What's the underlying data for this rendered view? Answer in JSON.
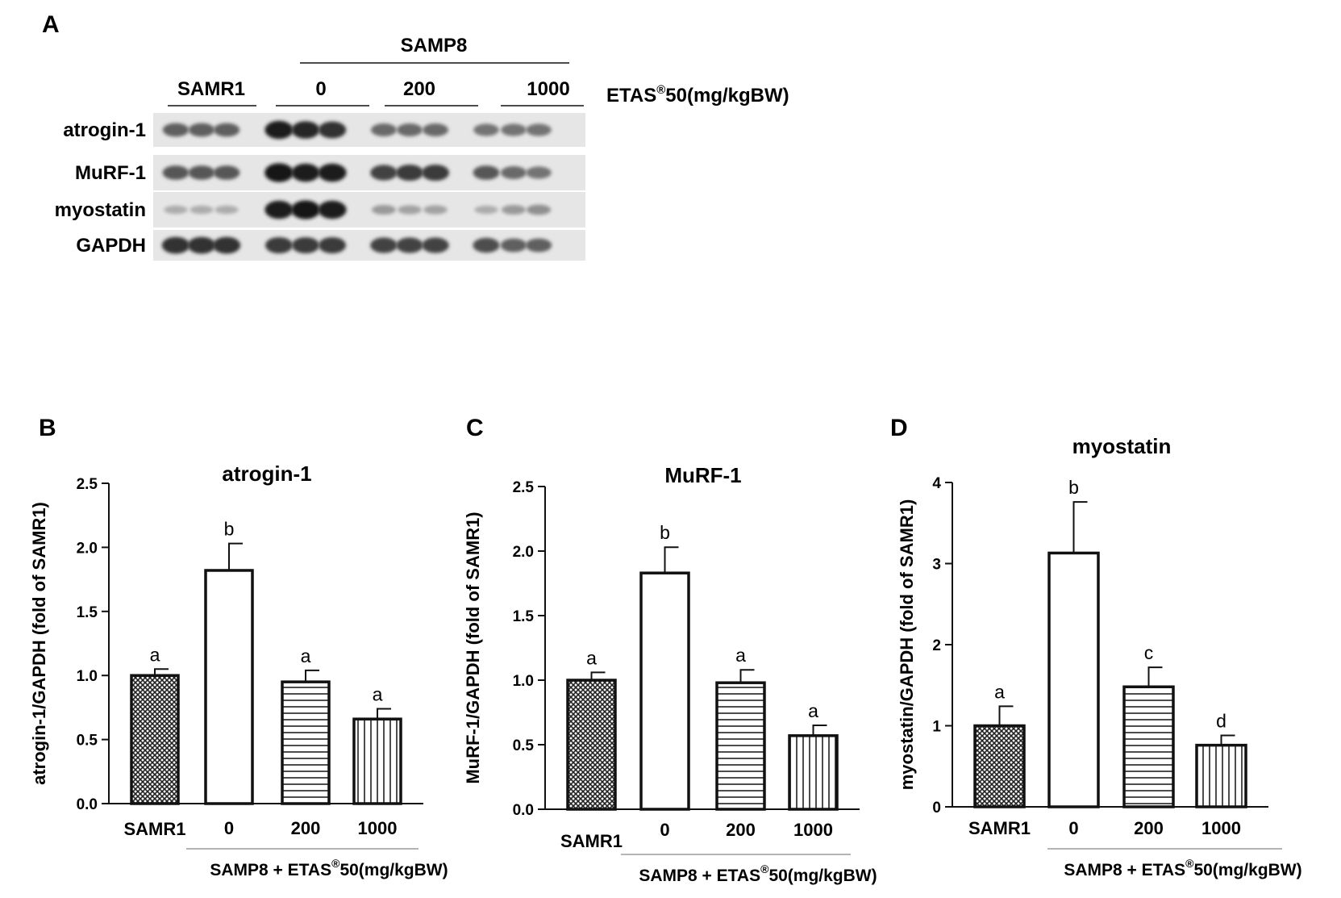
{
  "blot": {
    "panel": "A",
    "strain_header": "SAMP8",
    "control_label": "SAMR1",
    "doses": [
      "0",
      "200",
      "1000"
    ],
    "treatment_label_main": "ETAS",
    "treatment_label_reg": "®",
    "treatment_label_tail": "50(mg/kgBW)",
    "rows": [
      {
        "label": "atrogin-1",
        "intensity": [
          0.55,
          0.55,
          0.55,
          0.9,
          0.85,
          0.8,
          0.5,
          0.5,
          0.5,
          0.45,
          0.45,
          0.45
        ]
      },
      {
        "label": "MuRF-1",
        "intensity": [
          0.6,
          0.6,
          0.6,
          0.95,
          0.9,
          0.9,
          0.7,
          0.75,
          0.75,
          0.6,
          0.5,
          0.45
        ]
      },
      {
        "label": "myostatin",
        "intensity": [
          0.15,
          0.15,
          0.15,
          0.9,
          0.95,
          0.9,
          0.25,
          0.2,
          0.2,
          0.15,
          0.25,
          0.3
        ]
      },
      {
        "label": "GAPDH",
        "intensity": [
          0.8,
          0.8,
          0.8,
          0.75,
          0.75,
          0.75,
          0.7,
          0.7,
          0.7,
          0.65,
          0.55,
          0.55
        ]
      }
    ]
  },
  "chart_data": [
    {
      "panel": "B",
      "type": "bar",
      "title": "atrogin-1",
      "ylabel": "atrogin-1/GAPDH (fold of SAMR1)",
      "categories": [
        "SAMR1",
        "0",
        "200",
        "1000"
      ],
      "values": [
        1.0,
        1.82,
        0.95,
        0.66
      ],
      "errors": [
        0.05,
        0.21,
        0.09,
        0.08
      ],
      "significance": [
        "a",
        "b",
        "a",
        "a"
      ],
      "fills": [
        "crosshatch",
        "white",
        "horizontal",
        "vertical"
      ],
      "ylim": [
        0,
        2.5
      ],
      "yticks": [
        "0.0",
        "0.5",
        "1.0",
        "1.5",
        "2.0",
        "2.5"
      ],
      "group_label_main": "SAMP8 + ETAS",
      "group_label_reg": "®",
      "group_label_tail": "50(mg/kgBW)"
    },
    {
      "panel": "C",
      "type": "bar",
      "title": "MuRF-1",
      "ylabel": "MuRF-1/GAPDH (fold of SAMR1)",
      "categories": [
        "SAMR1",
        "0",
        "200",
        "1000"
      ],
      "values": [
        1.0,
        1.83,
        0.98,
        0.57
      ],
      "errors": [
        0.06,
        0.2,
        0.1,
        0.08
      ],
      "significance": [
        "a",
        "b",
        "a",
        "a"
      ],
      "fills": [
        "crosshatch",
        "white",
        "horizontal",
        "vertical"
      ],
      "ylim": [
        0,
        2.5
      ],
      "yticks": [
        "0.0",
        "0.5",
        "1.0",
        "1.5",
        "2.0",
        "2.5"
      ],
      "group_label_main": "SAMP8 + ETAS",
      "group_label_reg": "®",
      "group_label_tail": "50(mg/kgBW)"
    },
    {
      "panel": "D",
      "type": "bar",
      "title": "myostatin",
      "ylabel": "myostatin/GAPDH (fold of SAMR1)",
      "categories": [
        "SAMR1",
        "0",
        "200",
        "1000"
      ],
      "values": [
        1.0,
        3.13,
        1.48,
        0.76
      ],
      "errors": [
        0.24,
        0.63,
        0.24,
        0.12
      ],
      "significance": [
        "a",
        "b",
        "c",
        "d"
      ],
      "fills": [
        "crosshatch",
        "white",
        "horizontal",
        "vertical"
      ],
      "ylim": [
        0,
        4
      ],
      "yticks": [
        "0",
        "1",
        "2",
        "3",
        "4"
      ],
      "group_label_main": "SAMP8 + ETAS",
      "group_label_reg": "®",
      "group_label_tail": "50(mg/kgBW)"
    }
  ]
}
